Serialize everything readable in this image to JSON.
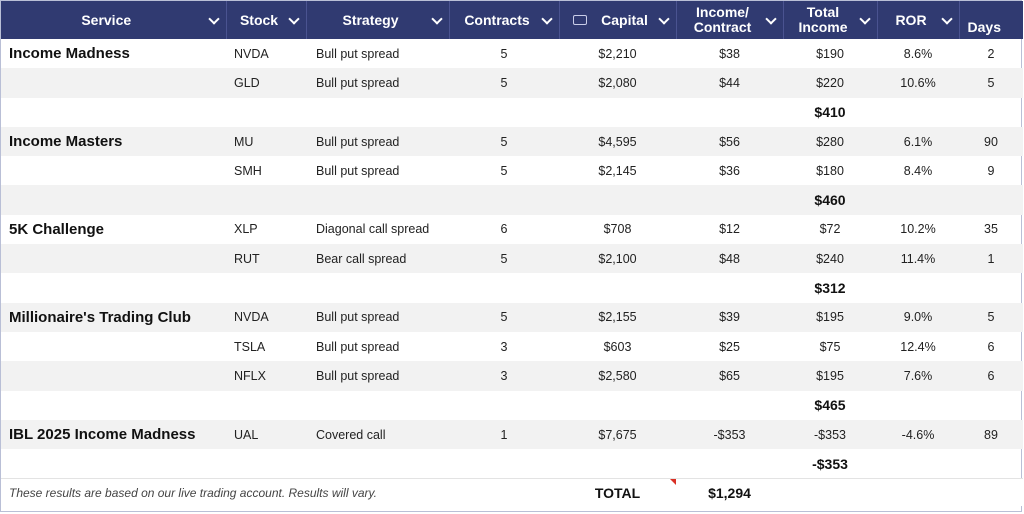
{
  "headers": {
    "service": "Service",
    "stock": "Stock",
    "strategy": "Strategy",
    "contracts": "Contracts",
    "capital": "Capital",
    "income_contract_1": "Income/",
    "income_contract_2": "Contract",
    "total_income_1": "Total",
    "total_income_2": "Income",
    "ror": "ROR",
    "days": "Days"
  },
  "groups": [
    {
      "service": "Income Madness",
      "rows": [
        {
          "stock": "NVDA",
          "strategy": "Bull put spread",
          "contracts": "5",
          "capital": "$2,210",
          "income_contract": "$38",
          "total_income": "$190",
          "ror": "8.6%",
          "days": "2"
        },
        {
          "stock": "GLD",
          "strategy": "Bull put spread",
          "contracts": "5",
          "capital": "$2,080",
          "income_contract": "$44",
          "total_income": "$220",
          "ror": "10.6%",
          "days": "5"
        }
      ],
      "subtotal": "$410"
    },
    {
      "service": "Income Masters",
      "rows": [
        {
          "stock": "MU",
          "strategy": "Bull put spread",
          "contracts": "5",
          "capital": "$4,595",
          "income_contract": "$56",
          "total_income": "$280",
          "ror": "6.1%",
          "days": "90"
        },
        {
          "stock": "SMH",
          "strategy": "Bull put spread",
          "contracts": "5",
          "capital": "$2,145",
          "income_contract": "$36",
          "total_income": "$180",
          "ror": "8.4%",
          "days": "9"
        }
      ],
      "subtotal": "$460"
    },
    {
      "service": "5K Challenge",
      "rows": [
        {
          "stock": "XLP",
          "strategy": "Diagonal call spread",
          "contracts": "6",
          "capital": "$708",
          "income_contract": "$12",
          "total_income": "$72",
          "ror": "10.2%",
          "days": "35"
        },
        {
          "stock": "RUT",
          "strategy": "Bear call spread",
          "contracts": "5",
          "capital": "$2,100",
          "income_contract": "$48",
          "total_income": "$240",
          "ror": "11.4%",
          "days": "1"
        }
      ],
      "subtotal": "$312"
    },
    {
      "service": "Millionaire's Trading Club",
      "rows": [
        {
          "stock": "NVDA",
          "strategy": "Bull put spread",
          "contracts": "5",
          "capital": "$2,155",
          "income_contract": "$39",
          "total_income": "$195",
          "ror": "9.0%",
          "days": "5"
        },
        {
          "stock": "TSLA",
          "strategy": "Bull put spread",
          "contracts": "3",
          "capital": "$603",
          "income_contract": "$25",
          "total_income": "$75",
          "ror": "12.4%",
          "days": "6"
        },
        {
          "stock": "NFLX",
          "strategy": "Bull put spread",
          "contracts": "3",
          "capital": "$2,580",
          "income_contract": "$65",
          "total_income": "$195",
          "ror": "7.6%",
          "days": "6"
        }
      ],
      "subtotal": "$465"
    },
    {
      "service": "IBL 2025 Income Madness",
      "rows": [
        {
          "stock": "UAL",
          "strategy": "Covered call",
          "contracts": "1",
          "capital": "$7,675",
          "income_contract": "-$353",
          "total_income": "-$353",
          "ror": "-4.6%",
          "days": "89"
        }
      ],
      "subtotal": "-$353"
    }
  ],
  "footer": {
    "note": "These results are based on our live trading account. Results will vary.",
    "total_label": "TOTAL",
    "total_value": "$1,294"
  },
  "icons": {
    "capital_header": "money-icon",
    "dropdown": "chevron-down-icon",
    "comment_marker": "comment-indicator"
  },
  "colors": {
    "header_bg": "#303a71",
    "header_text": "#ffffff",
    "row_alt": "#f2f2f2",
    "comment_marker": "#d93025"
  }
}
